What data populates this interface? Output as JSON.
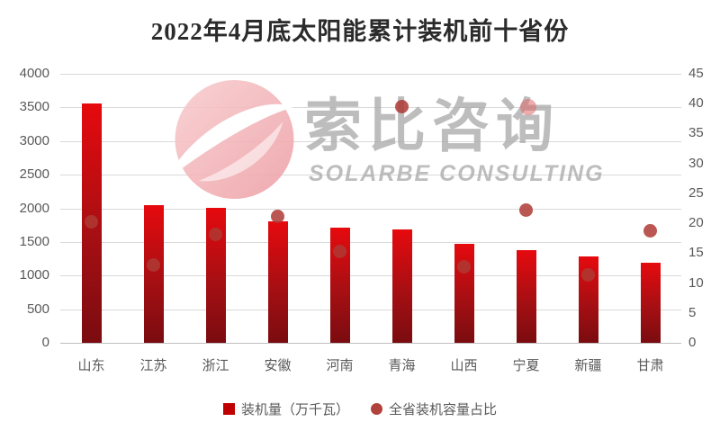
{
  "title": "2022年4月底太阳能累计装机前十省份",
  "watermark": {
    "cn": "索比咨询",
    "en": "SOLARBE CONSULTING"
  },
  "legend": {
    "bar_label": "装机量（万千瓦）",
    "dot_label": "全省装机容量占比"
  },
  "colors": {
    "bar_top": "#e60a0e",
    "bar_bottom": "#7a0c10",
    "dot": "#ae3a34",
    "legend_square": "#c00000",
    "legend_circle": "#b2423c",
    "gridline": "#d9d9d9",
    "axis_text": "#595959",
    "title_text": "#2b2b2b",
    "watermark_gray": "#a8a8a8",
    "watermark_pink": "#f2b3b6"
  },
  "chart_data": {
    "type": "bar",
    "title": "2022年4月底太阳能累计装机前十省份",
    "categories": [
      "山东",
      "江苏",
      "浙江",
      "安徽",
      "河南",
      "青海",
      "山西",
      "宁夏",
      "新疆",
      "甘肃"
    ],
    "series": [
      {
        "name": "装机量（万千瓦）",
        "type": "bar",
        "axis": "left",
        "values": [
          3560,
          2050,
          2010,
          1800,
          1710,
          1680,
          1475,
          1380,
          1280,
          1195
        ]
      },
      {
        "name": "全省装机容量占比",
        "type": "scatter",
        "axis": "right",
        "values": [
          20.3,
          13.0,
          18.1,
          21.2,
          15.3,
          39.5,
          12.7,
          22.2,
          11.4,
          18.8
        ]
      }
    ],
    "left_axis": {
      "min": 0,
      "max": 4000,
      "step": 500,
      "ticks": [
        "4000",
        "3500",
        "3000",
        "2500",
        "2000",
        "1500",
        "1000",
        "500",
        "0"
      ]
    },
    "right_axis": {
      "min": 0,
      "max": 45,
      "step": 5,
      "ticks": [
        "45",
        "40",
        "35",
        "30",
        "25",
        "20",
        "15",
        "10",
        "5",
        "0"
      ]
    },
    "grid": true,
    "legend_position": "bottom",
    "xlabel": "",
    "ylabel": ""
  }
}
